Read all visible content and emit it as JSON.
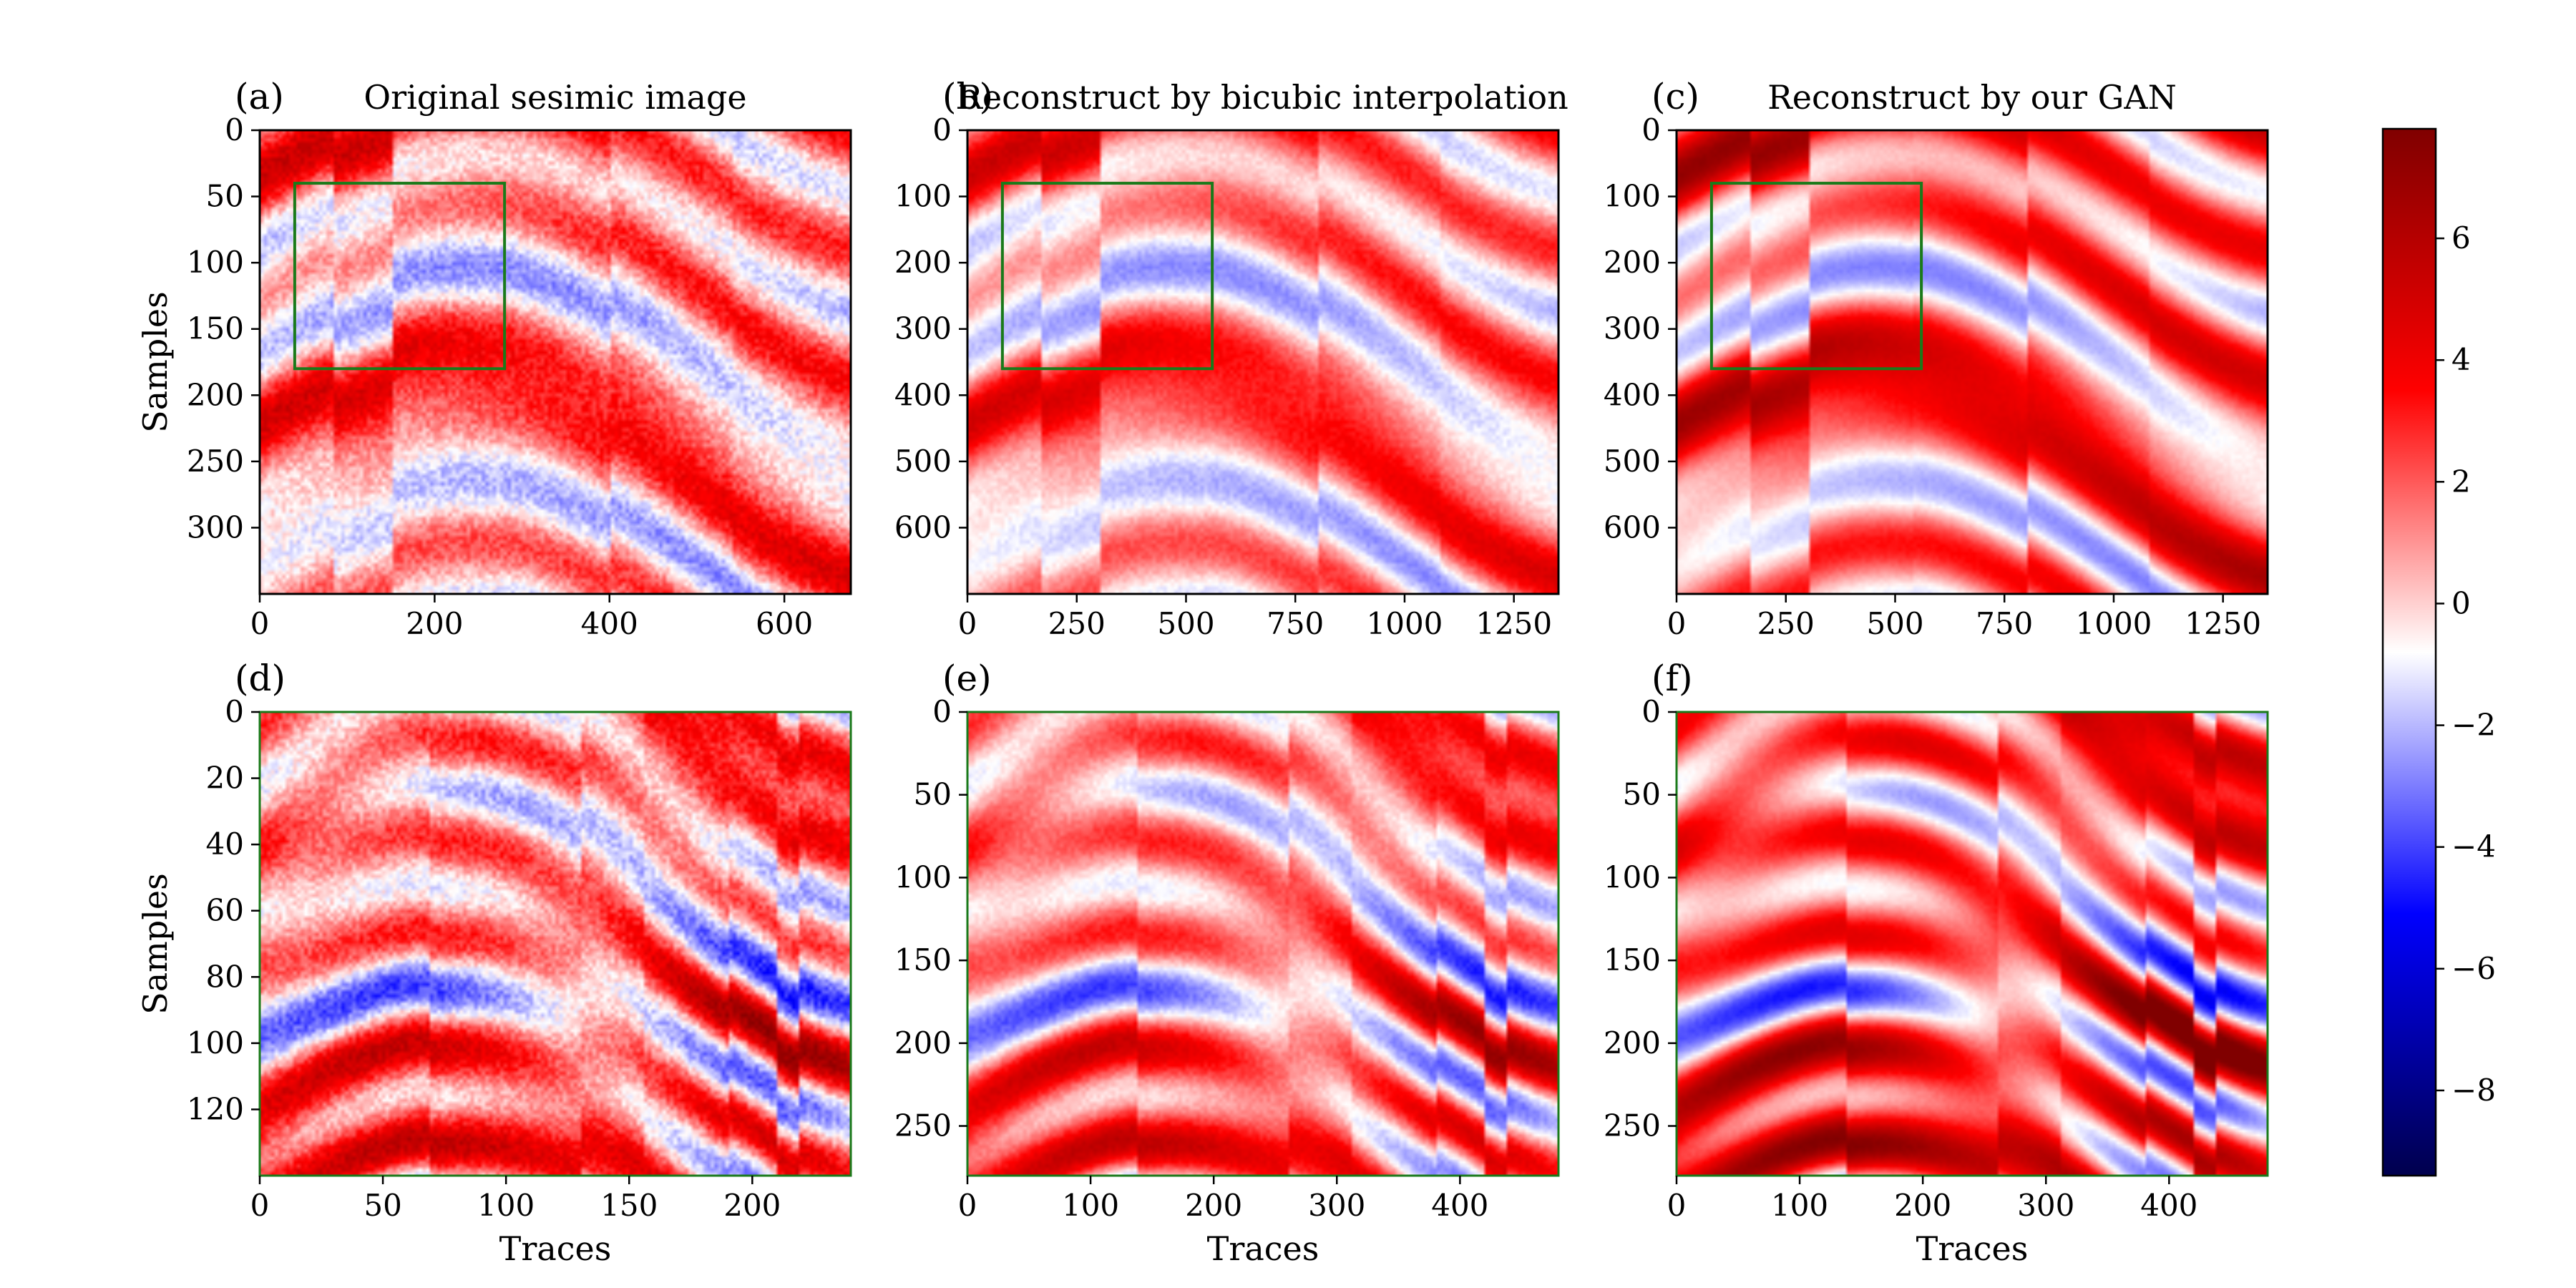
{
  "figure": {
    "colormap": "seismic",
    "axis_frame_color": "#000000",
    "box_color": "#1a7a1a"
  },
  "chart_data": [
    {
      "type": "heatmap",
      "panel_label": "(a)",
      "title": "Original sesimic image",
      "xlabel": "",
      "ylabel": "Samples",
      "xlim": [
        0,
        676
      ],
      "ylim": [
        350,
        0
      ],
      "xticks": [
        0,
        200,
        400,
        600
      ],
      "yticks": [
        0,
        50,
        100,
        150,
        200,
        250,
        300
      ],
      "seed": 11,
      "style": "original",
      "zoom_box": {
        "x": [
          40,
          280
        ],
        "y": [
          40,
          180
        ]
      }
    },
    {
      "type": "heatmap",
      "panel_label": "(b)",
      "title": "Reconstruct by bicubic interpolation",
      "xlabel": "",
      "ylabel": "",
      "xlim": [
        0,
        1352
      ],
      "ylim": [
        700,
        0
      ],
      "xticks": [
        0,
        250,
        500,
        750,
        1000,
        1250
      ],
      "yticks": [
        0,
        100,
        200,
        300,
        400,
        500,
        600
      ],
      "seed": 11,
      "style": "bicubic",
      "zoom_box": {
        "x": [
          80,
          560
        ],
        "y": [
          80,
          360
        ]
      }
    },
    {
      "type": "heatmap",
      "panel_label": "(c)",
      "title": "Reconstruct by our GAN",
      "xlabel": "",
      "ylabel": "",
      "xlim": [
        0,
        1352
      ],
      "ylim": [
        700,
        0
      ],
      "xticks": [
        0,
        250,
        500,
        750,
        1000,
        1250
      ],
      "yticks": [
        0,
        100,
        200,
        300,
        400,
        500,
        600
      ],
      "seed": 11,
      "style": "gan",
      "zoom_box": {
        "x": [
          80,
          560
        ],
        "y": [
          80,
          360
        ]
      }
    },
    {
      "type": "heatmap",
      "panel_label": "(d)",
      "title": "",
      "xlabel": "Traces",
      "ylabel": "Samples",
      "xlim": [
        0,
        240
      ],
      "ylim": [
        140,
        0
      ],
      "xticks": [
        0,
        50,
        100,
        150,
        200
      ],
      "yticks": [
        0,
        20,
        40,
        60,
        80,
        100,
        120
      ],
      "seed": 23,
      "style": "original"
    },
    {
      "type": "heatmap",
      "panel_label": "(e)",
      "title": "",
      "xlabel": "Traces",
      "ylabel": "",
      "xlim": [
        0,
        480
      ],
      "ylim": [
        280,
        0
      ],
      "xticks": [
        0,
        100,
        200,
        300,
        400
      ],
      "yticks": [
        0,
        50,
        100,
        150,
        200,
        250
      ],
      "seed": 23,
      "style": "bicubic"
    },
    {
      "type": "heatmap",
      "panel_label": "(f)",
      "title": "",
      "xlabel": "Traces",
      "ylabel": "",
      "xlim": [
        0,
        480
      ],
      "ylim": [
        280,
        0
      ],
      "xticks": [
        0,
        100,
        200,
        300,
        400
      ],
      "yticks": [
        0,
        50,
        100,
        150,
        200,
        250
      ],
      "seed": 23,
      "style": "gan"
    }
  ],
  "colorbar": {
    "range": [
      -9.4,
      7.8
    ],
    "ticks": [
      6,
      4,
      2,
      0,
      -2,
      -4,
      -6,
      -8
    ],
    "tick_labels": [
      "6",
      "4",
      "2",
      "0",
      "−2",
      "−4",
      "−6",
      "−8"
    ]
  }
}
